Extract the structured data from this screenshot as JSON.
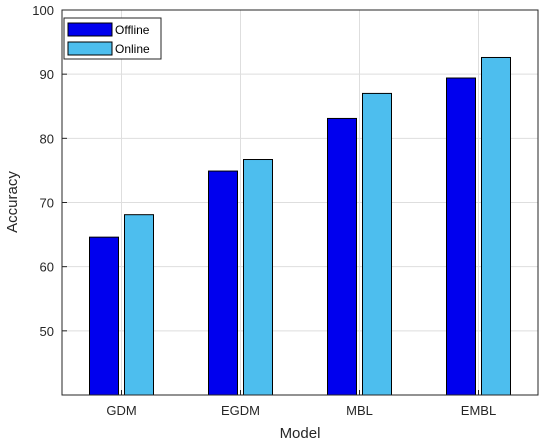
{
  "chart_data": {
    "type": "bar",
    "title": "",
    "xlabel": "Model",
    "ylabel": "Accuracy",
    "categories": [
      "GDM",
      "EGDM",
      "MBL",
      "EMBL"
    ],
    "series": [
      {
        "name": "Offline",
        "color": "#0000ee",
        "values": [
          64.6,
          74.9,
          83.1,
          89.4
        ]
      },
      {
        "name": "Online",
        "color": "#4dbeee",
        "values": [
          68.1,
          76.7,
          87.0,
          92.6
        ]
      }
    ],
    "ylim": [
      40,
      100
    ],
    "yticks": [
      50,
      60,
      70,
      80,
      90,
      100
    ],
    "grid": true,
    "legend_position": "top-left"
  }
}
